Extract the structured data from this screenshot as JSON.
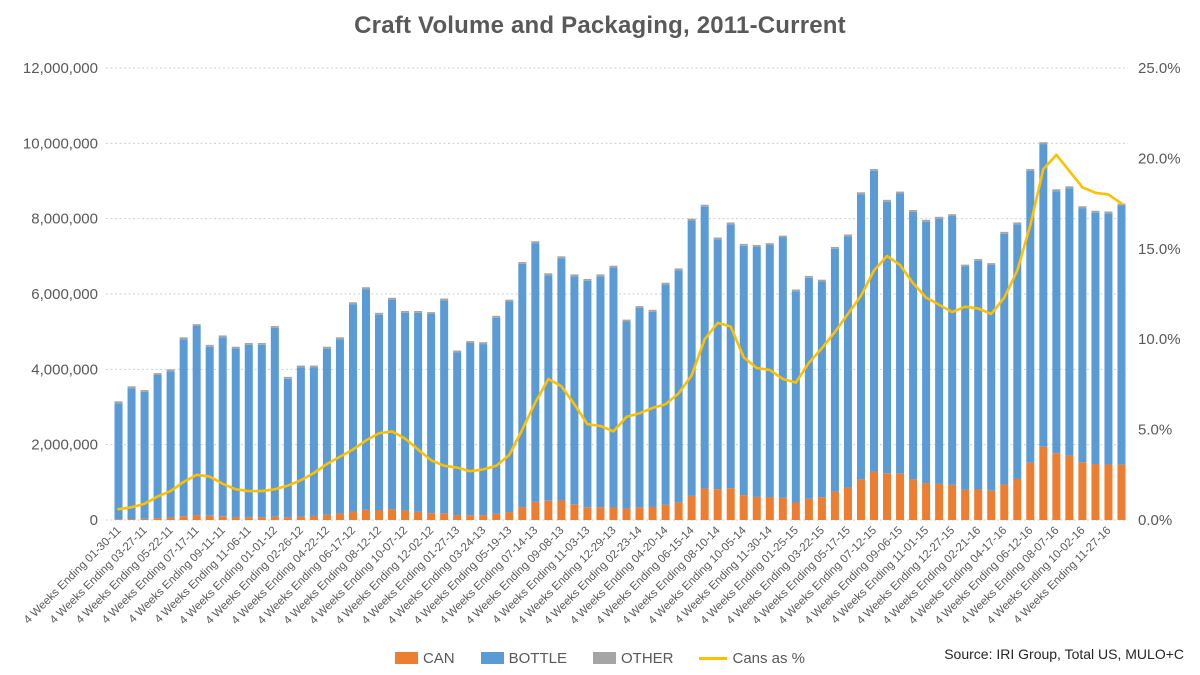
{
  "title": "Craft Volume and Packaging, 2011-Current",
  "source": "Source: IRI Group, Total US, MULO+C",
  "legend": [
    {
      "label": "CAN",
      "color": "#ED7D31",
      "type": "box"
    },
    {
      "label": "BOTTLE",
      "color": "#5B9BD5",
      "type": "box"
    },
    {
      "label": "OTHER",
      "color": "#A5A5A5",
      "type": "box"
    },
    {
      "label": "Cans as %",
      "color": "#FFC000",
      "type": "line"
    }
  ],
  "chart_data": {
    "type": "combo-stacked-bar-line",
    "grid": true,
    "left_axis": {
      "min": 0,
      "max": 12000000,
      "step": 2000000,
      "ticks": [
        "0",
        "2,000,000",
        "4,000,000",
        "6,000,000",
        "8,000,000",
        "10,000,000",
        "12,000,000"
      ]
    },
    "right_axis": {
      "min": 0,
      "max": 25,
      "step": 5,
      "ticks": [
        "0.0%",
        "5.0%",
        "10.0%",
        "15.0%",
        "20.0%",
        "25.0%"
      ]
    },
    "x_tick_labels": [
      "4 Weeks Ending 01-30-11",
      "4 Weeks Ending 03-27-11",
      "4 Weeks Ending 05-22-11",
      "4 Weeks Ending 07-17-11",
      "4 Weeks Ending 09-11-11",
      "4 Weeks Ending 11-06-11",
      "4 Weeks Ending 01-01-12",
      "4 Weeks Ending 02-26-12",
      "4 Weeks Ending 04-22-12",
      "4 Weeks Ending 06-17-12",
      "4 Weeks Ending 08-12-12",
      "4 Weeks Ending 10-07-12",
      "4 Weeks Ending 12-02-12",
      "4 Weeks Ending 01-27-13",
      "4 Weeks Ending 03-24-13",
      "4 Weeks Ending 05-19-13",
      "4 Weeks Ending 07-14-13",
      "4 Weeks Ending 09-08-13",
      "4 Weeks Ending 11-03-13",
      "4 Weeks Ending 12-29-13",
      "4 Weeks Ending 02-23-14",
      "4 Weeks Ending 04-20-14",
      "4 Weeks Ending 06-15-14",
      "4 Weeks Ending 08-10-14",
      "4 Weeks Ending 10-05-14",
      "4 Weeks Ending 11-30-14",
      "4 Weeks Ending 01-25-15",
      "4 Weeks Ending 03-22-15",
      "4 Weeks Ending 05-17-15",
      "4 Weeks Ending 07-12-15",
      "4 Weeks Ending 09-06-15",
      "4 Weeks Ending 11-01-15",
      "4 Weeks Ending 12-27-15",
      "4 Weeks Ending 02-21-16",
      "4 Weeks Ending 04-17-16",
      "4 Weeks Ending 06-12-16",
      "4 Weeks Ending 08-07-16",
      "4 Weeks Ending 10-02-16",
      "4 Weeks Ending 11-27-16"
    ],
    "x_label_every": 2,
    "series": [
      {
        "name": "CAN",
        "type": "bar",
        "axis": "left",
        "color": "#ED7D31",
        "values": [
          19000,
          25000,
          31000,
          51000,
          64000,
          102000,
          130000,
          112000,
          98000,
          78000,
          75000,
          75000,
          88000,
          72000,
          90000,
          107000,
          143000,
          170000,
          225000,
          272000,
          264000,
          289000,
          250000,
          216000,
          182000,
          176000,
          131000,
          128000,
          130000,
          163000,
          211000,
          343000,
          481000,
          511000,
          518000,
          417000,
          339000,
          339000,
          331000,
          303000,
          335000,
          346000,
          403000,
          468000,
          640000,
          837000,
          818000,
          845000,
          660000,
          613000,
          610000,
          589000,
          465000,
          564000,
          606000,
          754000,
          864000,
          1079000,
          1286000,
          1241000,
          1230000,
          1078000,
          980000,
          958000,
          934000,
          800000,
          811000,
          777000,
          941000,
          1090000,
          1519000,
          1946000,
          1774000,
          1710000,
          1533000,
          1486000,
          1474000,
          1470000
        ]
      },
      {
        "name": "BOTTLE",
        "type": "bar",
        "axis": "left",
        "color": "#5B9BD5",
        "values": [
          3081000,
          3475000,
          3369000,
          3799000,
          3886000,
          4698000,
          5020000,
          4488000,
          4752000,
          4472000,
          4575000,
          4575000,
          5012000,
          3678000,
          3960000,
          3943000,
          4407000,
          4630000,
          5505000,
          5858000,
          5186000,
          5561000,
          5250000,
          5284000,
          5288000,
          5654000,
          4319000,
          4572000,
          4540000,
          5207000,
          5589000,
          6457000,
          6869000,
          5989000,
          6432000,
          6053000,
          6011000,
          6131000,
          6369000,
          4967000,
          5295000,
          5184000,
          5847000,
          6162000,
          7310000,
          7483000,
          6632000,
          7005000,
          6620000,
          6637000,
          6690000,
          6911000,
          5605000,
          5866000,
          5724000,
          6446000,
          6666000,
          7571000,
          7984000,
          7209000,
          7440000,
          7102000,
          6940000,
          7042000,
          7136000,
          5930000,
          6069000,
          5993000,
          6659000,
          6760000,
          7751000,
          8034000,
          6956000,
          7100000,
          6747000,
          6674000,
          6666000,
          6880000
        ]
      },
      {
        "name": "OTHER",
        "type": "bar",
        "axis": "left",
        "color": "#A5A5A5",
        "values": [
          50000,
          50000,
          50000,
          50000,
          50000,
          50000,
          50000,
          50000,
          50000,
          50000,
          50000,
          50000,
          50000,
          50000,
          50000,
          50000,
          50000,
          50000,
          50000,
          50000,
          50000,
          50000,
          50000,
          50000,
          50000,
          50000,
          50000,
          50000,
          50000,
          50000,
          50000,
          50000,
          50000,
          50000,
          50000,
          50000,
          50000,
          50000,
          50000,
          50000,
          50000,
          50000,
          50000,
          50000,
          50000,
          50000,
          50000,
          50000,
          50000,
          50000,
          50000,
          50000,
          50000,
          50000,
          50000,
          50000,
          50000,
          50000,
          50000,
          50000,
          50000,
          50000,
          50000,
          50000,
          50000,
          50000,
          50000,
          50000,
          50000,
          50000,
          50000,
          50000,
          50000,
          50000,
          50000,
          50000,
          50000,
          50000
        ]
      },
      {
        "name": "Cans as %",
        "type": "line",
        "axis": "right",
        "color": "#FFC000",
        "values": [
          0.6,
          0.7,
          0.9,
          1.3,
          1.6,
          2.1,
          2.5,
          2.4,
          2.0,
          1.7,
          1.6,
          1.6,
          1.7,
          1.9,
          2.2,
          2.6,
          3.1,
          3.5,
          3.9,
          4.4,
          4.8,
          4.9,
          4.5,
          3.9,
          3.3,
          3.0,
          2.9,
          2.7,
          2.8,
          3.0,
          3.6,
          5.0,
          6.5,
          7.8,
          7.4,
          6.4,
          5.3,
          5.2,
          4.9,
          5.7,
          5.9,
          6.2,
          6.4,
          7.0,
          8.0,
          10.0,
          10.9,
          10.7,
          9.0,
          8.4,
          8.3,
          7.8,
          7.6,
          8.7,
          9.5,
          10.4,
          11.4,
          12.4,
          13.8,
          14.6,
          14.1,
          13.1,
          12.3,
          11.9,
          11.5,
          11.8,
          11.7,
          11.4,
          12.3,
          13.8,
          16.3,
          19.4,
          20.2,
          19.3,
          18.4,
          18.1,
          18.0,
          17.5
        ]
      }
    ]
  }
}
